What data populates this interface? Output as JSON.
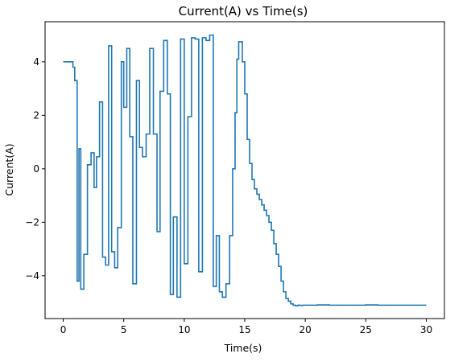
{
  "chart_data": {
    "type": "line",
    "title": "Current(A) vs Time(s)",
    "xlabel": "Time(s)",
    "ylabel": "Current(A)",
    "xlim": [
      -1.5,
      31.5
    ],
    "ylim": [
      -5.6,
      5.5
    ],
    "xticks": [
      0,
      5,
      10,
      15,
      20,
      25,
      30
    ],
    "yticks": [
      -4,
      -2,
      0,
      2,
      4
    ],
    "grid": false,
    "line_color": "#1f77b4",
    "series": [
      {
        "step": true,
        "x": [
          0,
          0.8,
          0.95,
          1.15,
          1.3,
          1.45,
          1.7,
          2.0,
          2.3,
          2.55,
          2.75,
          3.0,
          3.25,
          3.5,
          3.75,
          4.0,
          4.25,
          4.5,
          4.8,
          5.0,
          5.25,
          5.5,
          5.75,
          6.05,
          6.3,
          6.55,
          6.85,
          7.15,
          7.45,
          7.75,
          8.0,
          8.3,
          8.6,
          8.85,
          9.1,
          9.4,
          9.7,
          10.0,
          10.3,
          10.6,
          10.9,
          11.2,
          11.5,
          11.8,
          12.1,
          12.4,
          12.65,
          12.9,
          13.15,
          13.45,
          13.75,
          14.0,
          14.2,
          14.35,
          14.5,
          14.8,
          15.0,
          15.2,
          15.4,
          15.6,
          15.8,
          16.0,
          16.2,
          16.4,
          16.6,
          16.8,
          17.0,
          17.2,
          17.4,
          17.6,
          17.8,
          18.0,
          18.2,
          18.4,
          18.6,
          18.8,
          19.0,
          19.2,
          19.4,
          19.6,
          19.8,
          20.0,
          21.0,
          22.0,
          23.0,
          24.0,
          25.0,
          26.0,
          27.0,
          28.0,
          29.0,
          30.0
        ],
        "y": [
          4.0,
          3.8,
          3.3,
          -4.2,
          0.75,
          -4.5,
          -3.2,
          0.15,
          0.6,
          -0.7,
          0.45,
          2.5,
          -3.3,
          -3.6,
          4.6,
          -3.1,
          -3.7,
          -2.2,
          4.0,
          2.3,
          4.5,
          1.2,
          -4.3,
          3.3,
          0.8,
          0.45,
          1.3,
          4.5,
          1.3,
          -2.35,
          2.9,
          4.8,
          2.8,
          -4.7,
          -1.8,
          -4.8,
          4.85,
          -3.55,
          1.95,
          4.9,
          4.85,
          -3.85,
          4.9,
          4.8,
          5.0,
          -4.4,
          -2.5,
          -4.6,
          -4.8,
          -4.3,
          -2.5,
          0.0,
          2.1,
          4.1,
          4.75,
          4.0,
          2.8,
          1.1,
          0.2,
          -0.4,
          -0.75,
          -0.95,
          -1.15,
          -1.35,
          -1.55,
          -1.75,
          -2.0,
          -2.3,
          -2.8,
          -3.2,
          -3.65,
          -4.2,
          -4.6,
          -4.85,
          -4.95,
          -5.05,
          -5.1,
          -5.12,
          -5.1,
          -5.11,
          -5.1,
          -5.1,
          -5.09,
          -5.1,
          -5.1,
          -5.1,
          -5.09,
          -5.1,
          -5.1,
          -5.1,
          -5.1,
          -5.1
        ]
      }
    ]
  }
}
